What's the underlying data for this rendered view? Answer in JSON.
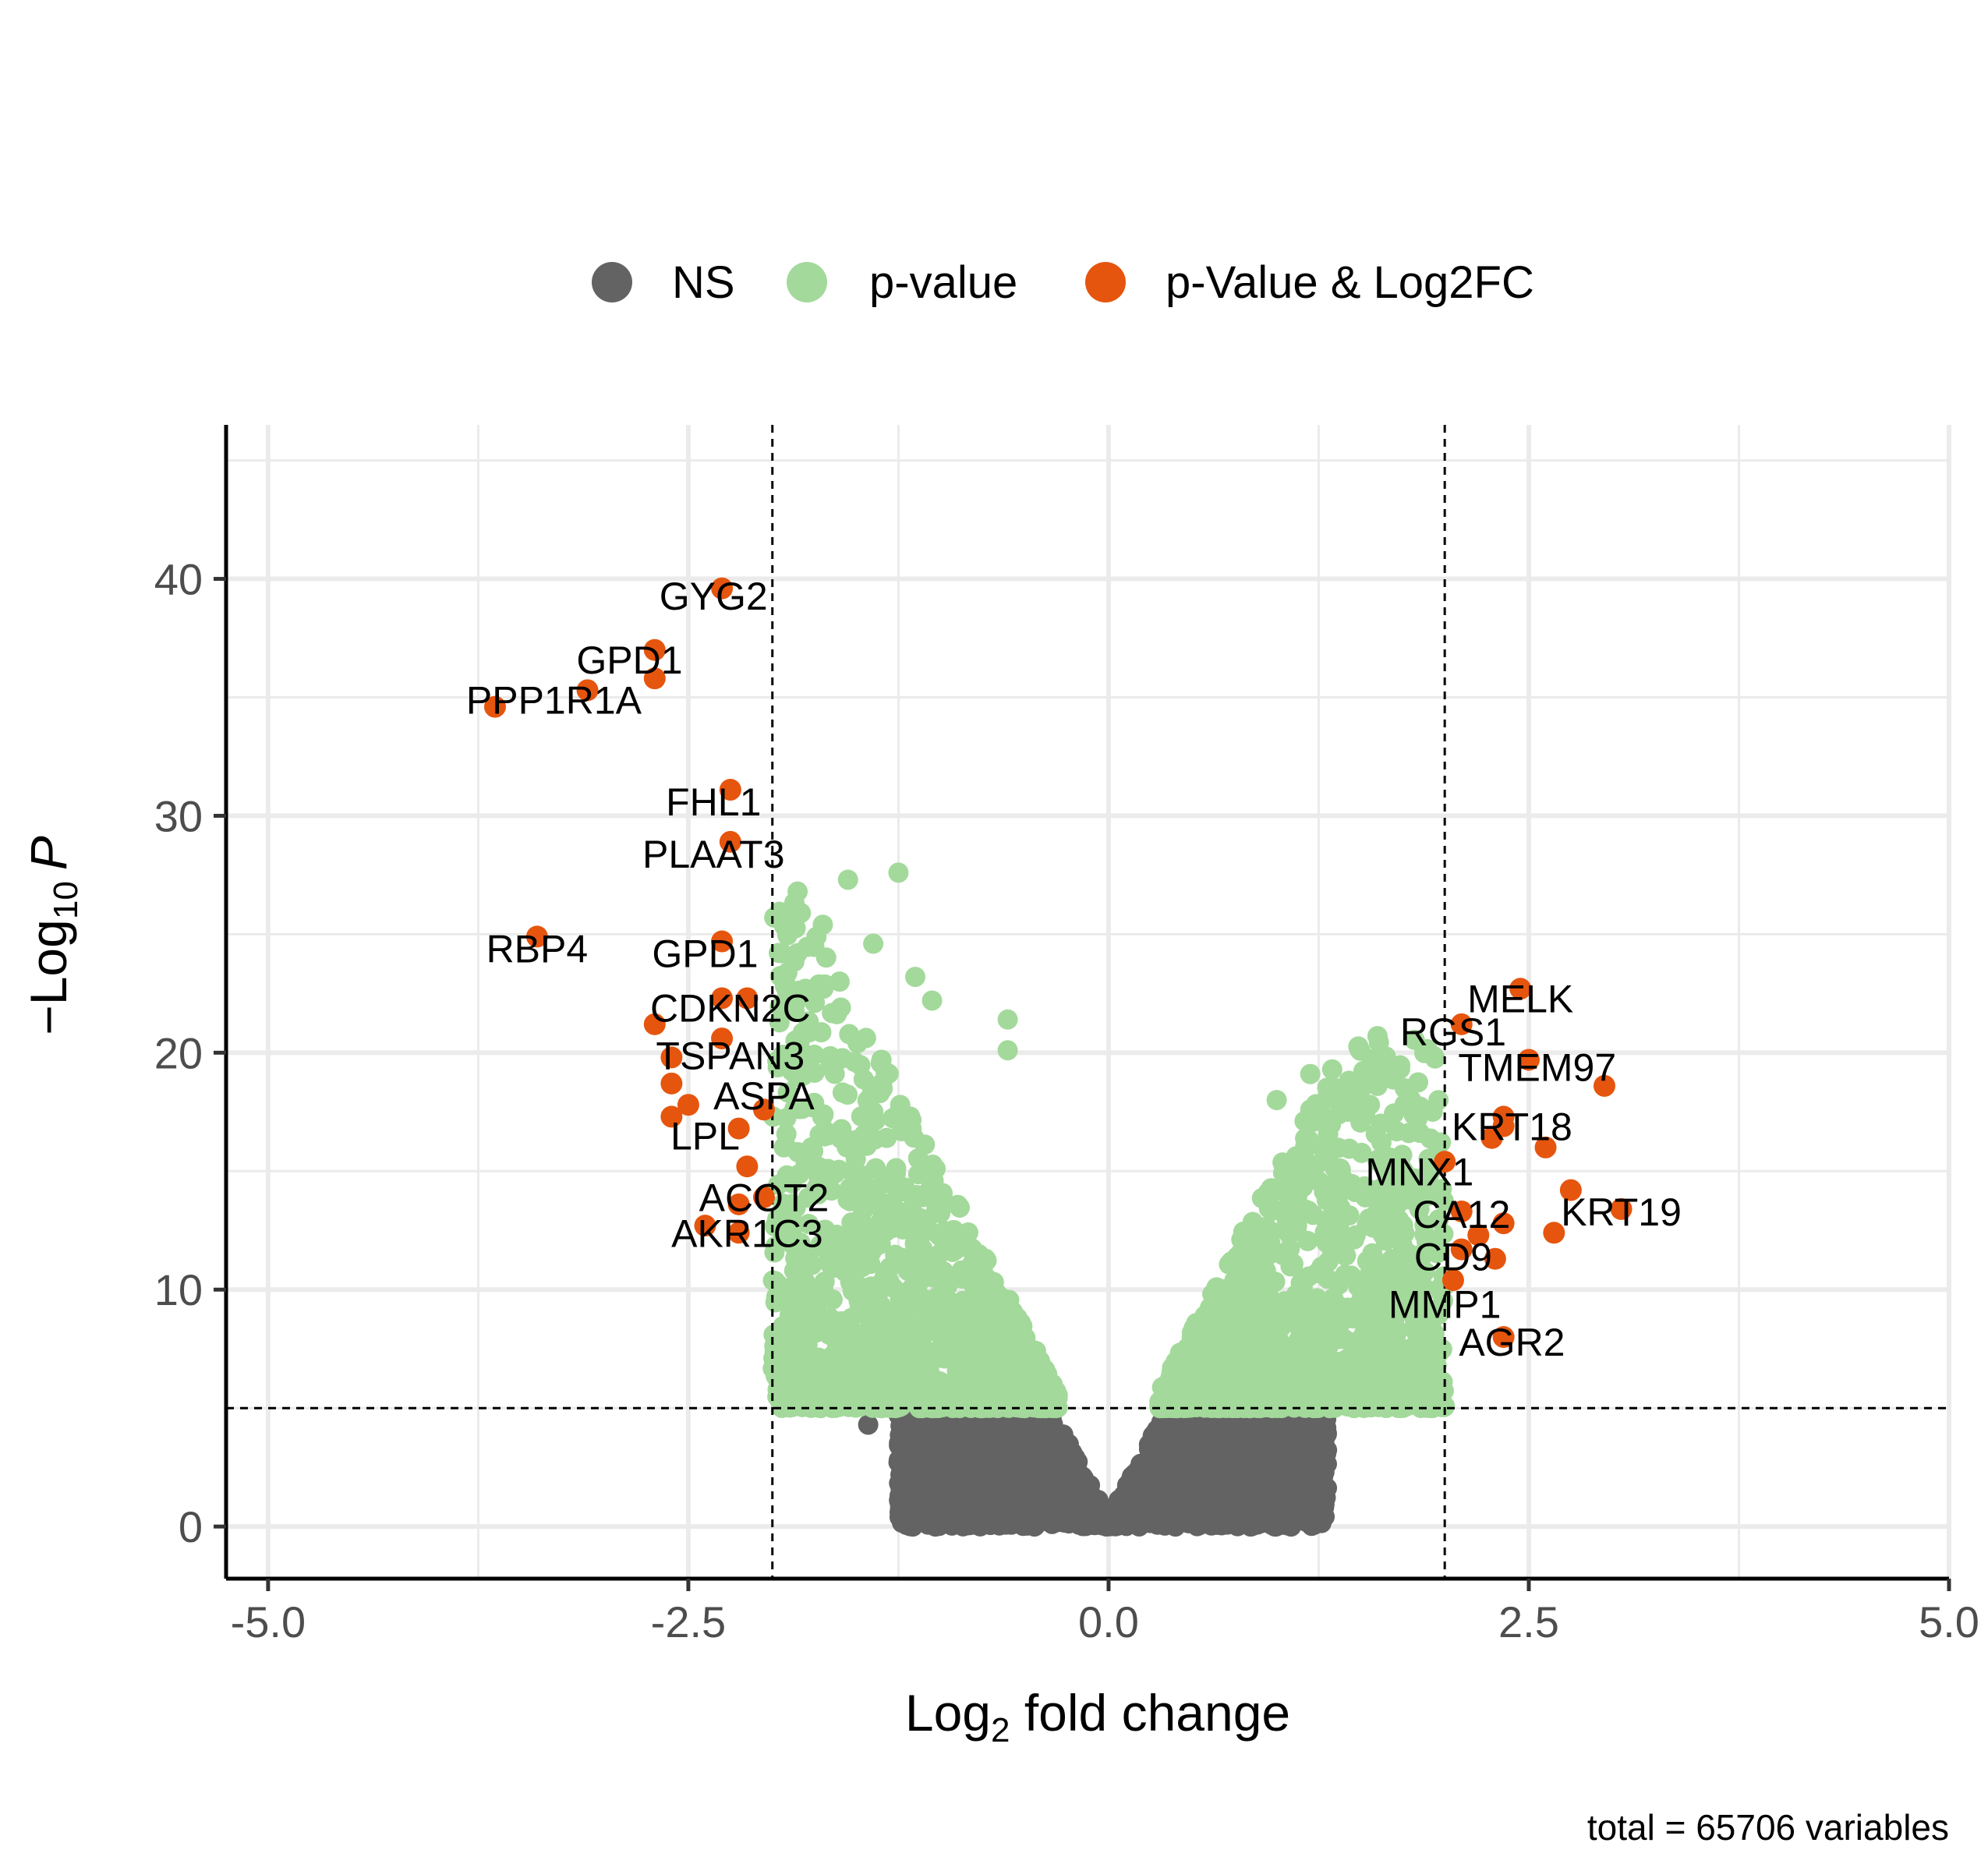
{
  "chart_data": {
    "type": "scatter",
    "xlabel": {
      "prefix": "Log",
      "sub": "2",
      "suffix": " fold change"
    },
    "ylabel": {
      "prefix": "−Log",
      "sub": "10",
      "suffix": "P"
    },
    "xlim": [
      -5.25,
      5.0
    ],
    "ylim": [
      -2.2,
      46.5
    ],
    "x_ticks": [
      -5.0,
      -2.5,
      0.0,
      2.5,
      5.0
    ],
    "x_tick_labels": [
      "-5.0",
      "-2.5",
      "0.0",
      "2.5",
      "5.0"
    ],
    "y_ticks": [
      0,
      10,
      20,
      30,
      40
    ],
    "y_tick_labels": [
      "0",
      "10",
      "20",
      "30",
      "40"
    ],
    "grid": true,
    "cutoffs": {
      "log2fc": [
        -2,
        2
      ],
      "neg_log10_p": 5
    },
    "legend_position": "top",
    "legend": [
      {
        "name": "NS",
        "color": "#636363"
      },
      {
        "name": "p-value",
        "color": "#a3d99b"
      },
      {
        "name": "p-Value & Log2FC",
        "color": "#e6550d"
      }
    ],
    "caption": "total = 65706 variables",
    "labeled_points": [
      {
        "gene": "GYG2",
        "x": -2.3,
        "y": 39.6
      },
      {
        "gene": "GPD1",
        "x": -2.7,
        "y": 37.0
      },
      {
        "gene": "PPP1R1A",
        "x": -3.1,
        "y": 35.3
      },
      {
        "gene": "PPP1R1A",
        "x": -2.7,
        "y": 35.8
      },
      {
        "gene": "PPP1R1A",
        "x": -3.65,
        "y": 34.6
      },
      {
        "gene": "FHL1",
        "x": -2.25,
        "y": 31.1
      },
      {
        "gene": "PLAAT3",
        "x": -2.25,
        "y": 28.9
      },
      {
        "gene": "RBP4",
        "x": -3.4,
        "y": 24.9
      },
      {
        "gene": "GPD1",
        "x": -2.3,
        "y": 24.7
      },
      {
        "gene": "CDKN2C",
        "x": -2.3,
        "y": 22.3
      },
      {
        "gene": "CDKN2C",
        "x": -2.15,
        "y": 22.3
      },
      {
        "gene": "TSPAN3",
        "x": -2.7,
        "y": 21.2
      },
      {
        "gene": "TSPAN3",
        "x": -2.3,
        "y": 20.6
      },
      {
        "gene": "TSPAN3",
        "x": -2.6,
        "y": 19.8
      },
      {
        "gene": "ASPA",
        "x": -2.6,
        "y": 18.7
      },
      {
        "gene": "ASPA",
        "x": -2.05,
        "y": 17.6
      },
      {
        "gene": "LPL",
        "x": -2.6,
        "y": 17.3
      },
      {
        "gene": "LPL",
        "x": -2.2,
        "y": 16.8
      },
      {
        "gene": "LPL",
        "x": -2.5,
        "y": 17.8
      },
      {
        "gene": "ACOT2",
        "x": -2.15,
        "y": 15.2
      },
      {
        "gene": "ACOT2",
        "x": -2.05,
        "y": 13.9
      },
      {
        "gene": "ACOT2",
        "x": -2.2,
        "y": 13.6
      },
      {
        "gene": "AKR1C3",
        "x": -2.4,
        "y": 12.7
      },
      {
        "gene": "AKR1C3",
        "x": -2.2,
        "y": 12.4
      },
      {
        "gene": "MELK",
        "x": 2.45,
        "y": 22.7
      },
      {
        "gene": "RGS1",
        "x": 2.1,
        "y": 21.2
      },
      {
        "gene": "TMEM97",
        "x": 2.5,
        "y": 19.7
      },
      {
        "gene": "TMEM97",
        "x": 2.95,
        "y": 18.6
      },
      {
        "gene": "KRT18",
        "x": 2.35,
        "y": 17.3
      },
      {
        "gene": "KRT18",
        "x": 2.35,
        "y": 16.9
      },
      {
        "gene": "KRT18",
        "x": 2.6,
        "y": 16.0
      },
      {
        "gene": "MNX1",
        "x": 2.0,
        "y": 15.4
      },
      {
        "gene": "MNX1",
        "x": 2.28,
        "y": 16.4
      },
      {
        "gene": "KRT19",
        "x": 2.75,
        "y": 14.2
      },
      {
        "gene": "KRT19",
        "x": 3.05,
        "y": 13.4
      },
      {
        "gene": "KRT19",
        "x": 2.65,
        "y": 12.4
      },
      {
        "gene": "CA12",
        "x": 2.1,
        "y": 13.3
      },
      {
        "gene": "CA12",
        "x": 2.35,
        "y": 12.8
      },
      {
        "gene": "CD9",
        "x": 2.2,
        "y": 12.3
      },
      {
        "gene": "CD9",
        "x": 2.1,
        "y": 11.7
      },
      {
        "gene": "CD9",
        "x": 2.3,
        "y": 11.3
      },
      {
        "gene": "MMP1",
        "x": 2.05,
        "y": 10.4
      },
      {
        "gene": "AGR2",
        "x": 2.35,
        "y": 8.0
      }
    ],
    "text_labels": [
      {
        "text": "GYG2",
        "x": -2.35,
        "y": 39.3
      },
      {
        "text": "GPD1",
        "x": -2.85,
        "y": 36.6
      },
      {
        "text": "PPP1R1A",
        "x": -3.3,
        "y": 34.9
      },
      {
        "text": "FHL1",
        "x": -2.35,
        "y": 30.6
      },
      {
        "text": "PLAAT3",
        "x": -2.35,
        "y": 28.4
      },
      {
        "text": "RBP4",
        "x": -3.4,
        "y": 24.4
      },
      {
        "text": "GPD1",
        "x": -2.4,
        "y": 24.2
      },
      {
        "text": "CDKN2C",
        "x": -2.25,
        "y": 21.9
      },
      {
        "text": "TSPAN3",
        "x": -2.25,
        "y": 19.9
      },
      {
        "text": "ASPA",
        "x": -2.05,
        "y": 18.2
      },
      {
        "text": "LPL",
        "x": -2.4,
        "y": 16.5
      },
      {
        "text": "ACOT2",
        "x": -2.05,
        "y": 13.9
      },
      {
        "text": "AKR1C3",
        "x": -2.15,
        "y": 12.4
      },
      {
        "text": "MELK",
        "x": 2.45,
        "y": 22.3
      },
      {
        "text": "RGS1",
        "x": 2.05,
        "y": 20.9
      },
      {
        "text": "TMEM97",
        "x": 2.55,
        "y": 19.4
      },
      {
        "text": "KRT18",
        "x": 2.4,
        "y": 16.9
      },
      {
        "text": "MNX1",
        "x": 1.85,
        "y": 15.0
      },
      {
        "text": "KRT19",
        "x": 3.05,
        "y": 13.3
      },
      {
        "text": "CA12",
        "x": 2.1,
        "y": 13.2
      },
      {
        "text": "CD9",
        "x": 2.05,
        "y": 11.4
      },
      {
        "text": "MMP1",
        "x": 2.0,
        "y": 9.4
      },
      {
        "text": "AGR2",
        "x": 2.4,
        "y": 7.8
      }
    ],
    "sig_clusters": [
      {
        "side": -1,
        "xmin": 0.3,
        "xmax": 2.0,
        "ymin": 5.0,
        "ymax": 27.6
      },
      {
        "side": 1,
        "xmin": 0.3,
        "xmax": 2.0,
        "ymin": 5.0,
        "ymax": 20.7
      }
    ],
    "sig_outliers": [
      {
        "x": -1.25,
        "y": 27.6
      },
      {
        "x": -1.55,
        "y": 27.3
      },
      {
        "x": -1.85,
        "y": 26.8
      },
      {
        "x": -1.7,
        "y": 25.4
      },
      {
        "x": -1.4,
        "y": 24.6
      },
      {
        "x": -1.85,
        "y": 24.2
      },
      {
        "x": -1.15,
        "y": 23.2
      },
      {
        "x": -1.6,
        "y": 23.0
      },
      {
        "x": -1.05,
        "y": 22.2
      },
      {
        "x": -0.6,
        "y": 21.4
      },
      {
        "x": -0.6,
        "y": 20.1
      },
      {
        "x": 1.2,
        "y": 19.1
      },
      {
        "x": 1.0,
        "y": 18.0
      },
      {
        "x": 1.8,
        "y": 18.0
      },
      {
        "x": 1.6,
        "y": 18.6
      },
      {
        "x": 1.2,
        "y": 17.6
      },
      {
        "x": 1.6,
        "y": 20.7
      },
      {
        "x": -1.8,
        "y": 7.6
      },
      {
        "x": -1.4,
        "y": 6.2
      },
      {
        "x": 1.5,
        "y": 5.8
      },
      {
        "x": 1.8,
        "y": 7.0
      }
    ],
    "ns_cloud": {
      "xmin": -1.25,
      "xmax": 1.3,
      "ymin": 0.0,
      "ymax": 5.0
    },
    "ns_outliers": [
      {
        "x": -1.43,
        "y": 4.3
      },
      {
        "x": 1.2,
        "y": 2.3
      },
      {
        "x": 1.1,
        "y": 2.7
      }
    ]
  }
}
